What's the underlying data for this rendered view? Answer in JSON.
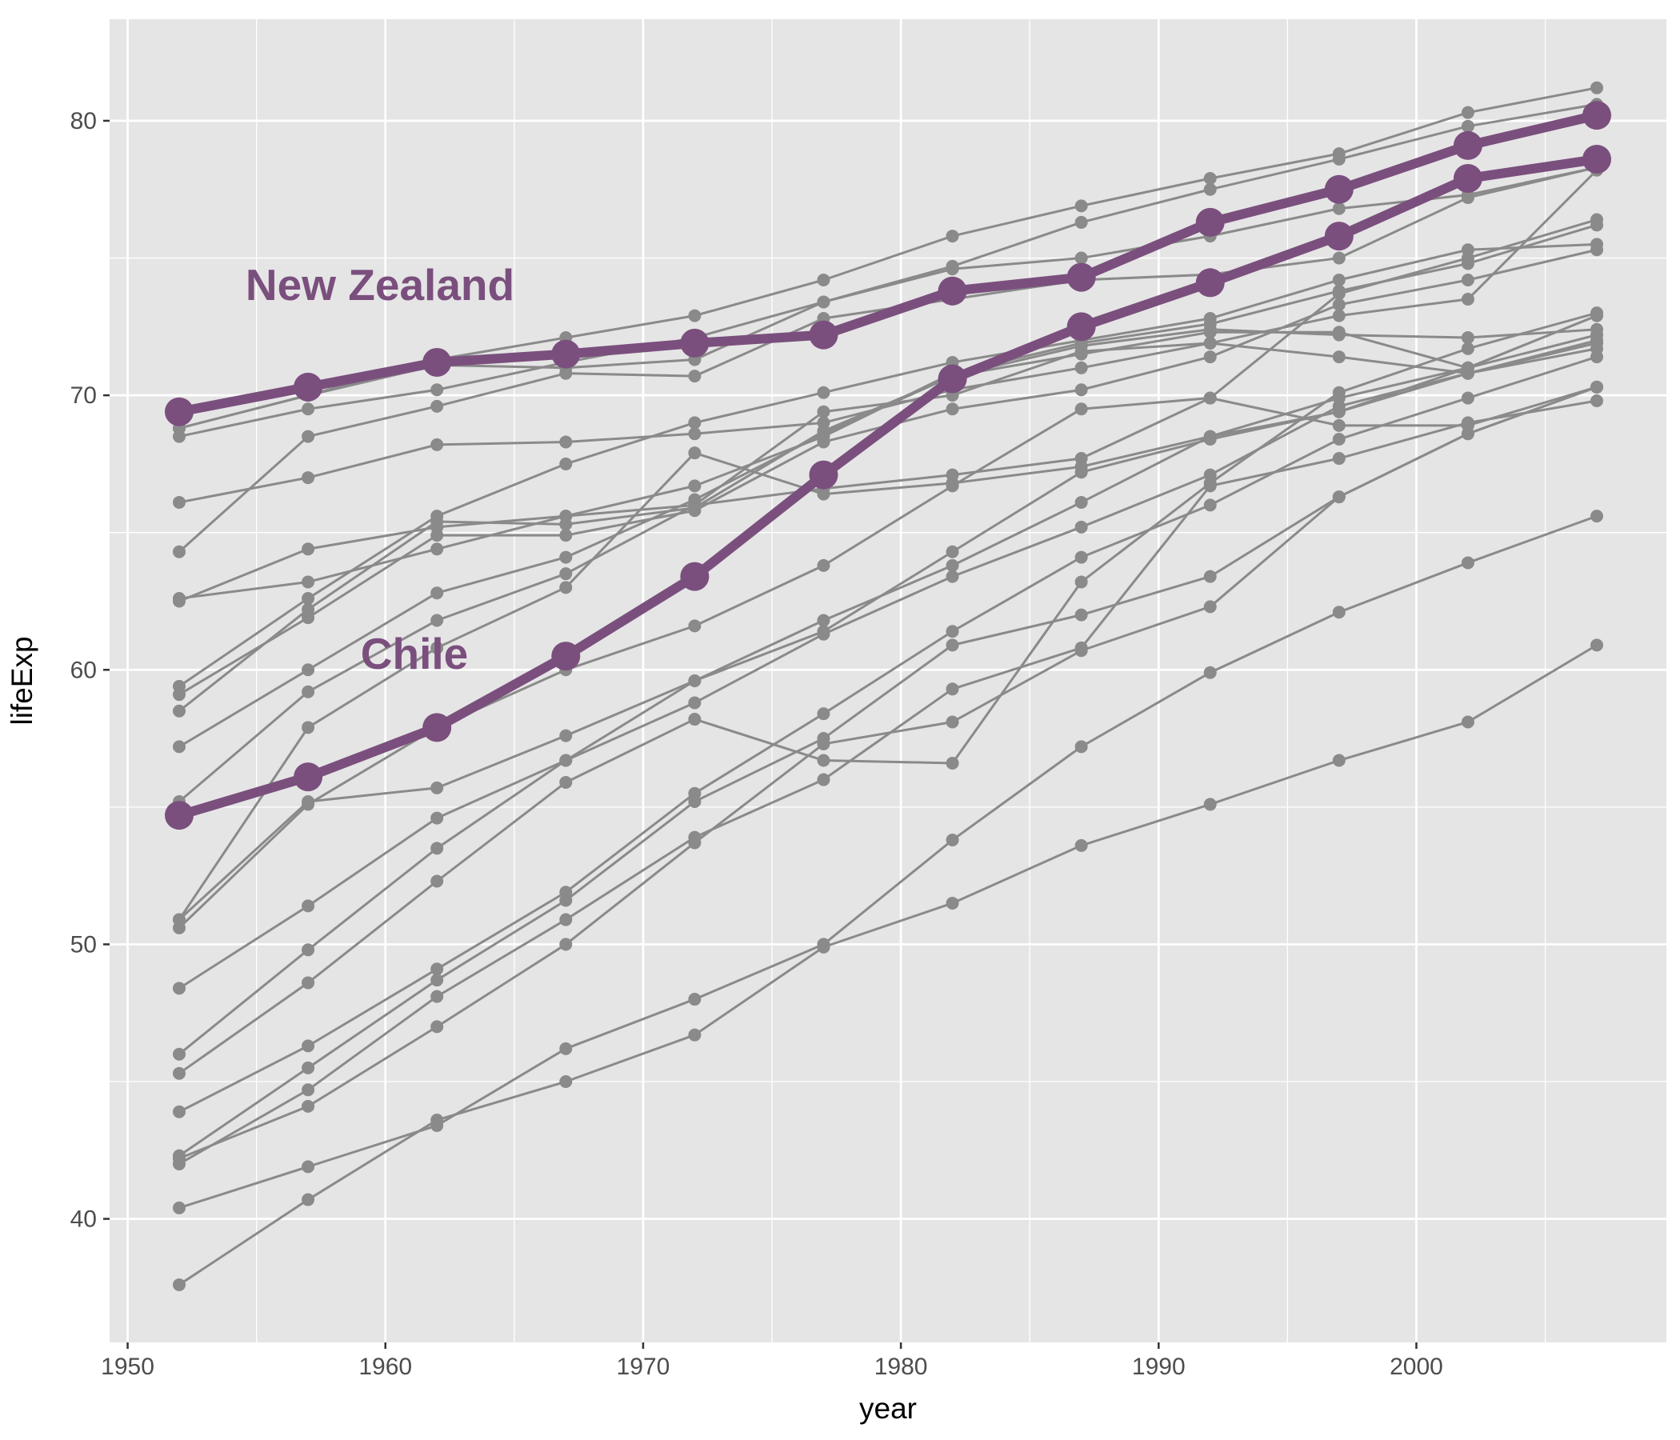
{
  "chart_data": {
    "type": "line",
    "xlabel": "year",
    "ylabel": "lifeExp",
    "xlim": [
      1949.3,
      2009.7
    ],
    "ylim": [
      35.5,
      83.7
    ],
    "x_ticks": [
      1950,
      1960,
      1970,
      1980,
      1990,
      2000
    ],
    "y_ticks": [
      40,
      50,
      60,
      70,
      80
    ],
    "x_tick_labels": [
      "1950",
      "1960",
      "1970",
      "1980",
      "1990",
      "2000"
    ],
    "y_tick_labels": [
      "40",
      "50",
      "60",
      "70",
      "80"
    ],
    "grid": true,
    "legend": "none",
    "x": [
      1952,
      1957,
      1962,
      1967,
      1972,
      1977,
      1982,
      1987,
      1992,
      1997,
      2002,
      2007
    ],
    "background_series_color": "#8a8a8a",
    "highlight_color": "#7a4f7d",
    "panel_background": "#e5e5e5",
    "series": [
      {
        "values": [
          68.8,
          70.0,
          71.3,
          72.1,
          72.9,
          74.2,
          75.8,
          76.9,
          77.9,
          78.8,
          80.3,
          81.2
        ]
      },
      {
        "values": [
          68.5,
          69.5,
          70.2,
          71.2,
          72.1,
          73.4,
          74.7,
          76.3,
          77.5,
          78.6,
          79.8,
          80.6
        ]
      },
      {
        "values": [
          68.8,
          70.0,
          71.1,
          71.0,
          71.3,
          73.4,
          74.6,
          75.0,
          75.8,
          76.8,
          77.3,
          78.3
        ]
      },
      {
        "values": [
          66.1,
          67.0,
          68.2,
          68.3,
          68.6,
          69.0,
          70.2,
          71.0,
          71.9,
          72.9,
          73.5,
          78.2
        ]
      },
      {
        "values": [
          64.3,
          68.5,
          69.6,
          70.8,
          70.7,
          72.8,
          73.5,
          74.2,
          74.4,
          75.0,
          77.2,
          78.3
        ]
      },
      {
        "values": [
          62.6,
          63.2,
          64.4,
          65.6,
          66.7,
          68.5,
          70.8,
          71.9,
          72.6,
          73.8,
          74.8,
          76.2
        ]
      },
      {
        "values": [
          62.5,
          64.4,
          65.2,
          65.6,
          66.0,
          66.6,
          67.1,
          67.7,
          69.9,
          73.7,
          75.0,
          76.4
        ]
      },
      {
        "values": [
          59.4,
          62.6,
          65.6,
          67.5,
          69.0,
          70.1,
          71.2,
          72.0,
          72.8,
          74.2,
          75.3,
          75.5
        ]
      },
      {
        "values": [
          59.1,
          61.9,
          64.9,
          64.9,
          65.8,
          68.3,
          69.5,
          70.2,
          71.4,
          73.3,
          74.2,
          75.3
        ]
      },
      {
        "values": [
          58.5,
          62.2,
          65.4,
          65.3,
          65.9,
          68.7,
          70.7,
          71.8,
          72.4,
          72.2,
          72.1,
          72.4
        ]
      },
      {
        "values": [
          57.2,
          60.0,
          62.8,
          64.1,
          66.2,
          68.6,
          70.7,
          71.5,
          72.3,
          72.3,
          71.0,
          72.9
        ]
      },
      {
        "values": [
          55.2,
          59.2,
          61.8,
          63.5,
          66.0,
          69.4,
          70.0,
          71.6,
          71.9,
          71.4,
          70.8,
          71.9
        ]
      },
      {
        "values": [
          50.9,
          57.9,
          60.8,
          63.0,
          67.9,
          66.4,
          66.8,
          67.4,
          68.5,
          69.4,
          71.0,
          72.2
        ]
      },
      {
        "values": [
          50.6,
          55.1,
          57.9,
          60.0,
          61.6,
          63.8,
          66.7,
          69.5,
          69.9,
          68.9,
          68.9,
          70.3
        ]
      },
      {
        "values": [
          50.9,
          55.2,
          55.7,
          57.6,
          59.6,
          61.8,
          63.8,
          66.1,
          68.5,
          69.9,
          71.0,
          72.9
        ]
      },
      {
        "values": [
          48.4,
          51.4,
          54.6,
          56.7,
          59.6,
          61.4,
          64.3,
          67.2,
          68.4,
          69.4,
          70.8,
          71.7
        ]
      },
      {
        "values": [
          46.0,
          49.8,
          53.5,
          56.7,
          58.8,
          61.3,
          63.4,
          65.2,
          67.1,
          69.6,
          70.8,
          72.0
        ]
      },
      {
        "values": [
          45.3,
          48.6,
          52.3,
          55.9,
          58.2,
          56.7,
          56.6,
          63.2,
          66.8,
          70.1,
          71.7,
          73.0
        ]
      },
      {
        "values": [
          43.9,
          46.3,
          49.1,
          51.9,
          55.5,
          58.4,
          61.4,
          64.1,
          66.0,
          68.4,
          69.9,
          71.4
        ]
      },
      {
        "values": [
          42.3,
          45.5,
          48.7,
          51.6,
          55.2,
          57.5,
          60.9,
          62.0,
          63.4,
          66.3,
          68.6,
          70.3
        ]
      },
      {
        "values": [
          42.0,
          44.7,
          48.1,
          50.9,
          53.9,
          56.0,
          59.3,
          60.8,
          66.7,
          67.7,
          69.0,
          69.8
        ]
      },
      {
        "values": [
          42.2,
          44.1,
          47.0,
          50.0,
          53.7,
          57.3,
          58.1,
          60.7,
          62.3,
          66.3,
          68.6,
          70.3
        ]
      },
      {
        "values": [
          40.4,
          41.9,
          43.4,
          46.2,
          48.0,
          50.0,
          53.8,
          57.2,
          59.9,
          62.1,
          63.9,
          65.6
        ]
      },
      {
        "values": [
          37.6,
          40.7,
          43.6,
          45.0,
          46.7,
          49.9,
          51.5,
          53.6,
          55.1,
          56.7,
          58.1,
          60.9
        ]
      }
    ],
    "highlight_series": [
      {
        "name": "New Zealand",
        "values": [
          69.4,
          70.3,
          71.2,
          71.5,
          71.9,
          72.2,
          73.8,
          74.3,
          76.3,
          77.5,
          79.1,
          80.2
        ]
      },
      {
        "name": "Chile",
        "values": [
          54.7,
          56.1,
          57.9,
          60.5,
          63.4,
          67.1,
          70.6,
          72.5,
          74.1,
          75.8,
          77.9,
          78.6
        ]
      }
    ]
  }
}
